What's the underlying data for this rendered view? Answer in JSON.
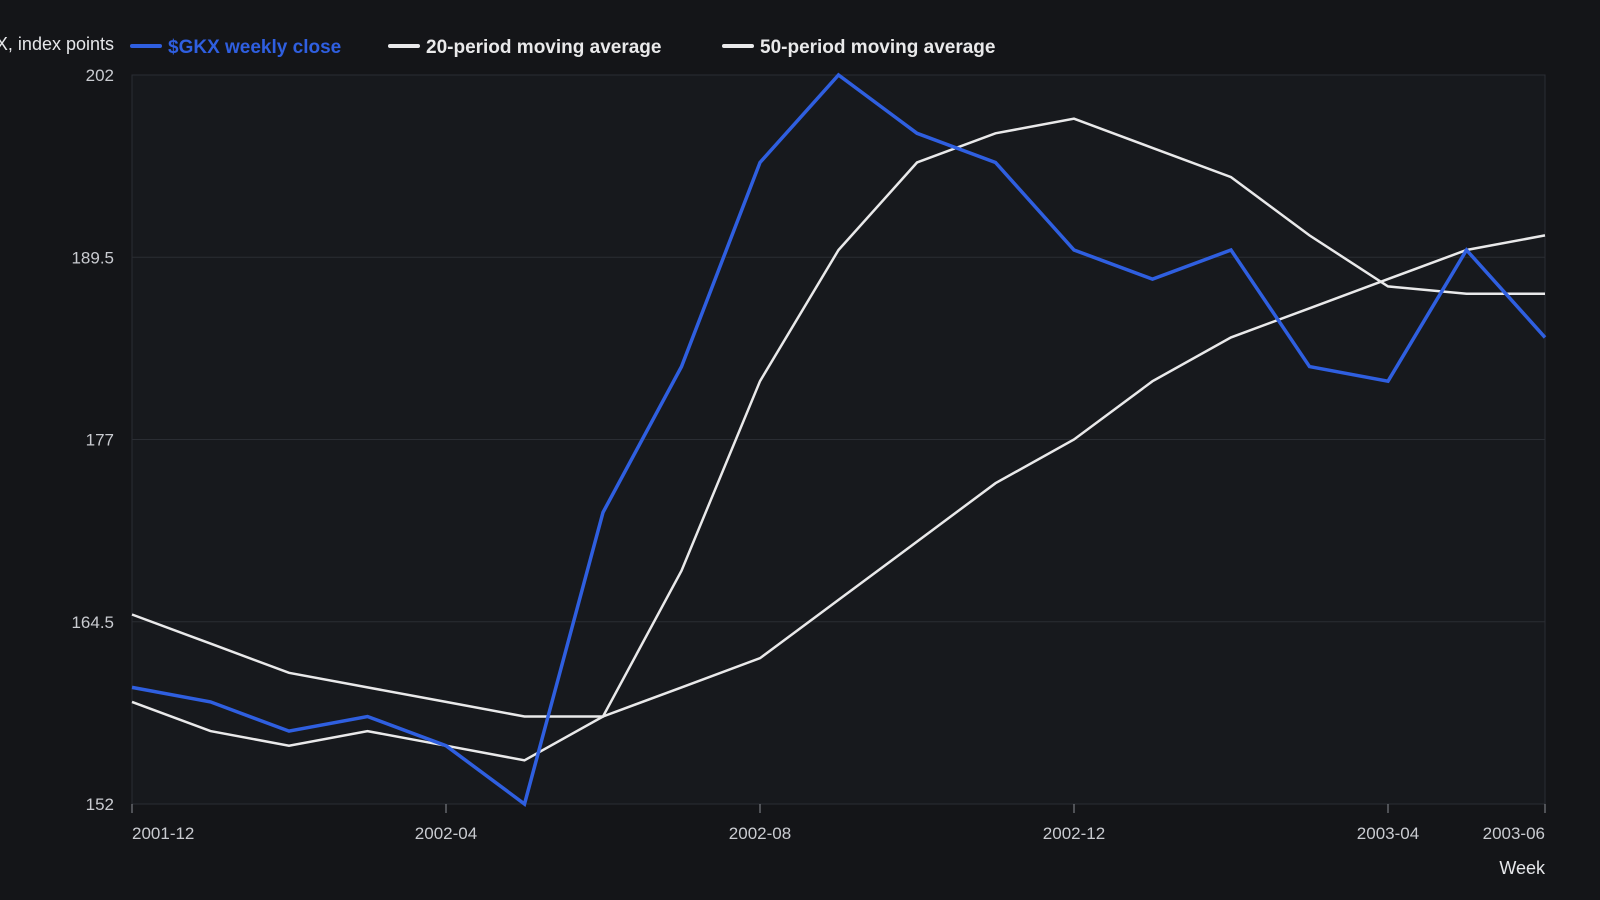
{
  "chart_data": {
    "type": "line",
    "ylabel": "$GKX, index points",
    "xlabel": "Week",
    "ylim": [
      152,
      202
    ],
    "yticks": [
      152,
      164.5,
      177,
      189.5,
      202
    ],
    "xticks": [
      {
        "label": "2001-12",
        "x": 0
      },
      {
        "label": "2002-04",
        "x": 4
      },
      {
        "label": "2002-08",
        "x": 8
      },
      {
        "label": "2002-12",
        "x": 12
      },
      {
        "label": "2003-04",
        "x": 16
      },
      {
        "label": "2003-06",
        "x": 18
      }
    ],
    "x": [
      0,
      1,
      2,
      3,
      4,
      5,
      6,
      7,
      8,
      9,
      10,
      11,
      12,
      13,
      14,
      15,
      16,
      17,
      18
    ],
    "grid": true,
    "legend": "top",
    "series": [
      {
        "name": "$GKX weekly close",
        "color": "#2f5fe0",
        "values": [
          160,
          159,
          157,
          158,
          156,
          152,
          172,
          182,
          196,
          202,
          198,
          196,
          190,
          188,
          190,
          182,
          181,
          190,
          184
        ]
      },
      {
        "name": "20-period moving average",
        "color": "#e9e9ea",
        "values": [
          165,
          163,
          161,
          160,
          159,
          158,
          158,
          168,
          181,
          190,
          196,
          198,
          199,
          197,
          195,
          191,
          187.5,
          187,
          187
        ]
      },
      {
        "name": "50-period moving average",
        "color": "#e9e9ea",
        "values": [
          159,
          157,
          156,
          157,
          156,
          155,
          158,
          160,
          162,
          166,
          170,
          174,
          177,
          181,
          184,
          186,
          188,
          190,
          191
        ]
      }
    ]
  }
}
